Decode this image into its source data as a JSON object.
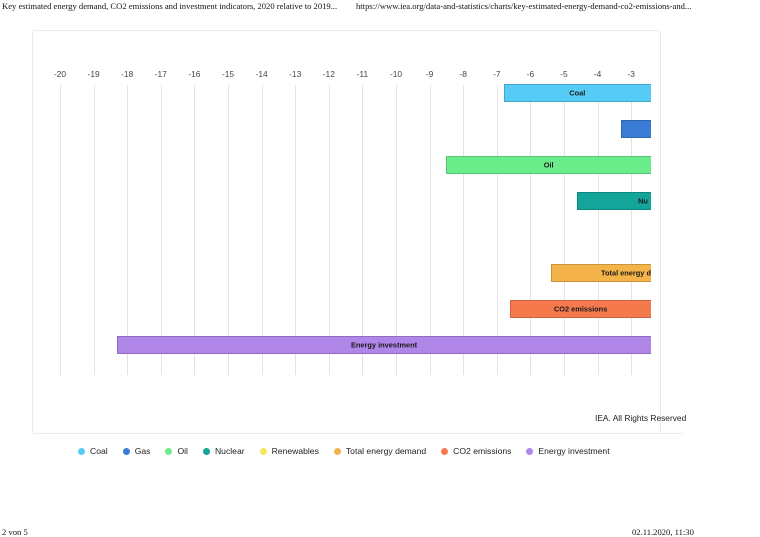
{
  "header": {
    "left": "Key estimated energy demand, CO2 emissions and investment indicators, 2020 relative to 2019...",
    "right": "https://www.iea.org/data-and-statistics/charts/key-estimated-energy-demand-co2-emissions-and..."
  },
  "footer": {
    "page": "2 von 5",
    "datetime": "02.11.2020, 11:30"
  },
  "credit": "IEA. All Rights Reserved",
  "chart_data": {
    "type": "bar",
    "orientation": "horizontal",
    "title": "",
    "xlabel": "",
    "ylabel": "",
    "xlim": [
      -20.8,
      -2.3
    ],
    "xticks": [
      -20,
      -19,
      -18,
      -17,
      -16,
      -15,
      -14,
      -13,
      -12,
      -11,
      -10,
      -9,
      -8,
      -7,
      -6,
      -5,
      -4,
      -3
    ],
    "grid": true,
    "legend_position": "bottom-left",
    "categories": [
      "Coal",
      "Gas",
      "Oil",
      "Nuclear",
      "Renewables",
      "Total energy demand",
      "CO2 emissions",
      "Energy investment"
    ],
    "values": [
      -6.8,
      -3.3,
      -8.5,
      -4.6,
      null,
      -5.4,
      -6.6,
      -18.3
    ],
    "bar_labels": [
      "Coal",
      "",
      "Oil",
      "Nu",
      "",
      "Total energy d",
      "CO2 emissions",
      "Energy investment"
    ],
    "colors": [
      "#55cbf5",
      "#3a7bd5",
      "#6ced8c",
      "#14a59a",
      "#f7e55b",
      "#f5b449",
      "#f47a4e",
      "#b086e8"
    ]
  }
}
